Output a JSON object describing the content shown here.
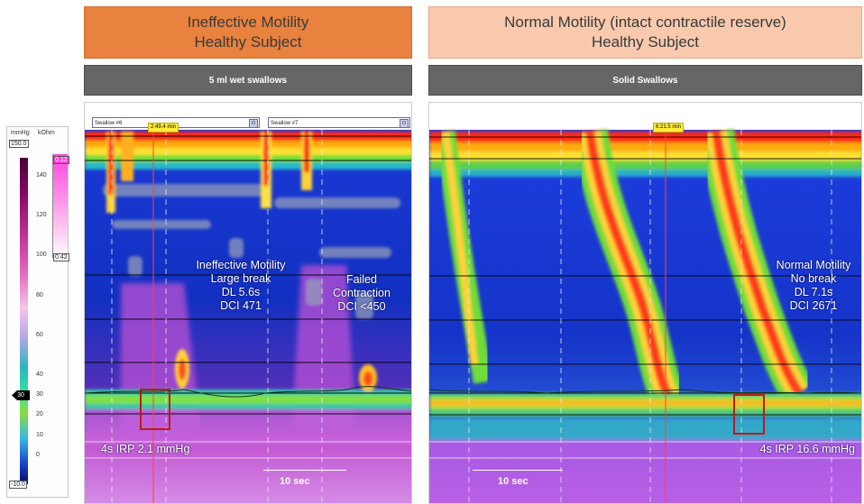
{
  "left_panel": {
    "title_line1": "Ineffective Motility",
    "title_line2": "Healthy Subject",
    "subtitle": "5 ml wet swallows",
    "swallow_tab_1": "Swallow #6",
    "swallow_tab_2": "Swallow #7",
    "time_marker": "2:49.4 min",
    "annotation_1": [
      "Ineffective Motility",
      "Large break",
      "DL 5.6s",
      "DCI 471"
    ],
    "annotation_2": [
      "Failed",
      "Contraction",
      "DCI <450"
    ],
    "irp": "4s IRP 2.1 mmHg",
    "scale": "10 sec",
    "accent_color": "#e8823e"
  },
  "right_panel": {
    "title_line1": "Normal Motility (intact contractile reserve)",
    "title_line2": "Healthy Subject",
    "subtitle": "Solid Swallows",
    "time_marker": "6:21.5 min",
    "annotation": [
      "Normal Motility",
      "No break",
      "DL 7.1s",
      "DCI 2671"
    ],
    "irp": "4s IRP 16.6 mmHg",
    "scale": "10 sec",
    "accent_color": "#f8c9ad"
  },
  "legend": {
    "pressure_unit": "mmHg",
    "impedance_unit": "kOhm",
    "max_value": "150.0",
    "min_value": "-10.0",
    "ticks": [
      "140",
      "120",
      "100",
      "80",
      "60",
      "40",
      "30",
      "20",
      "10",
      "0"
    ],
    "impedance_high": "0.12",
    "impedance_low": "0.42",
    "marker_value": "30"
  }
}
